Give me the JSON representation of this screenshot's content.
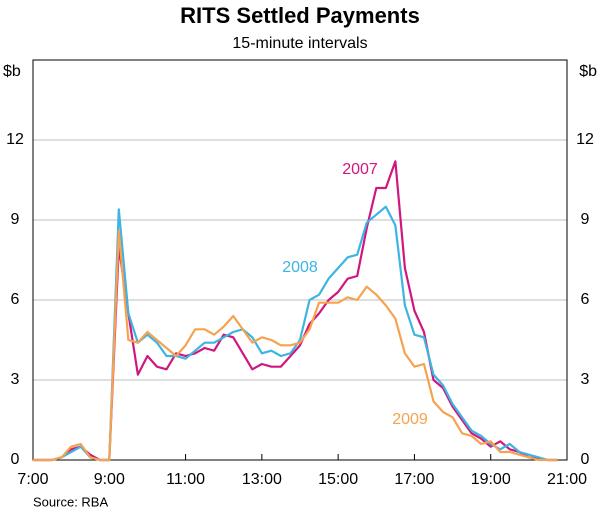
{
  "chart_data": {
    "type": "line",
    "title": "RITS Settled Payments",
    "subtitle": "15-minute intervals",
    "y_label": "$b",
    "y2_label": "$b",
    "source": "Source: RBA",
    "x": [
      7,
      7.25,
      7.5,
      7.75,
      8,
      8.25,
      8.5,
      8.75,
      9,
      9.25,
      9.5,
      9.75,
      10,
      10.25,
      10.5,
      10.75,
      11,
      11.25,
      11.5,
      11.75,
      12,
      12.25,
      12.5,
      12.75,
      13,
      13.25,
      13.5,
      13.75,
      14,
      14.25,
      14.5,
      14.75,
      15,
      15.25,
      15.5,
      15.75,
      16,
      16.25,
      16.5,
      16.75,
      17,
      17.25,
      17.5,
      17.75,
      18,
      18.25,
      18.5,
      18.75,
      19,
      19.25,
      19.5,
      19.75,
      20,
      20.25,
      20.5,
      20.75
    ],
    "xlim": [
      7,
      21
    ],
    "xticks": [
      {
        "value": 7,
        "label": "7:00"
      },
      {
        "value": 9,
        "label": "9:00"
      },
      {
        "value": 11,
        "label": "11:00"
      },
      {
        "value": 13,
        "label": "13:00"
      },
      {
        "value": 15,
        "label": "15:00"
      },
      {
        "value": 17,
        "label": "17:00"
      },
      {
        "value": 19,
        "label": "19:00"
      },
      {
        "value": 21,
        "label": "21:00"
      }
    ],
    "ylim": [
      0,
      15
    ],
    "yticks": [
      0,
      3,
      6,
      9,
      12
    ],
    "grid": true,
    "series": [
      {
        "name": "2007",
        "color": "#d0177f",
        "values": [
          0,
          0,
          0,
          0.1,
          0.4,
          0.5,
          0.2,
          0,
          0,
          8.0,
          5.5,
          3.2,
          3.9,
          3.5,
          3.4,
          4.0,
          3.9,
          4.0,
          4.2,
          4.1,
          4.7,
          4.6,
          4.0,
          3.4,
          3.6,
          3.5,
          3.5,
          3.9,
          4.3,
          5.1,
          5.5,
          6.0,
          6.3,
          6.8,
          6.9,
          8.7,
          10.2,
          10.2,
          11.2,
          7.2,
          5.6,
          4.8,
          3.0,
          2.7,
          2.0,
          1.5,
          1.0,
          0.8,
          0.5,
          0.7,
          0.4,
          0.3,
          0.1,
          0.05,
          0,
          0
        ]
      },
      {
        "name": "2008",
        "color": "#3db4e2",
        "values": [
          0,
          0,
          0,
          0.1,
          0.3,
          0.5,
          0.1,
          0,
          0,
          9.4,
          5.5,
          4.4,
          4.7,
          4.4,
          3.9,
          3.9,
          3.8,
          4.1,
          4.4,
          4.4,
          4.6,
          4.8,
          4.9,
          4.6,
          4.0,
          4.1,
          3.9,
          4.0,
          4.5,
          6.0,
          6.2,
          6.8,
          7.2,
          7.6,
          7.7,
          8.9,
          9.2,
          9.5,
          8.8,
          5.8,
          4.7,
          4.6,
          3.2,
          2.8,
          2.1,
          1.6,
          1.1,
          0.9,
          0.6,
          0.4,
          0.6,
          0.3,
          0.2,
          0.1,
          0,
          0
        ]
      },
      {
        "name": "2009",
        "color": "#f5a34f",
        "values": [
          0,
          0,
          0,
          0.1,
          0.5,
          0.6,
          0.1,
          0,
          0,
          8.6,
          4.5,
          4.4,
          4.8,
          4.5,
          4.2,
          3.9,
          4.3,
          4.9,
          4.9,
          4.7,
          5.0,
          5.4,
          4.9,
          4.4,
          4.6,
          4.5,
          4.3,
          4.3,
          4.4,
          4.9,
          5.9,
          5.9,
          5.9,
          6.1,
          6.0,
          6.5,
          6.2,
          5.8,
          5.3,
          4.0,
          3.5,
          3.6,
          2.2,
          1.8,
          1.6,
          1.0,
          0.9,
          0.6,
          0.7,
          0.3,
          0.3,
          0.2,
          0.1,
          0,
          0,
          0
        ]
      }
    ]
  }
}
